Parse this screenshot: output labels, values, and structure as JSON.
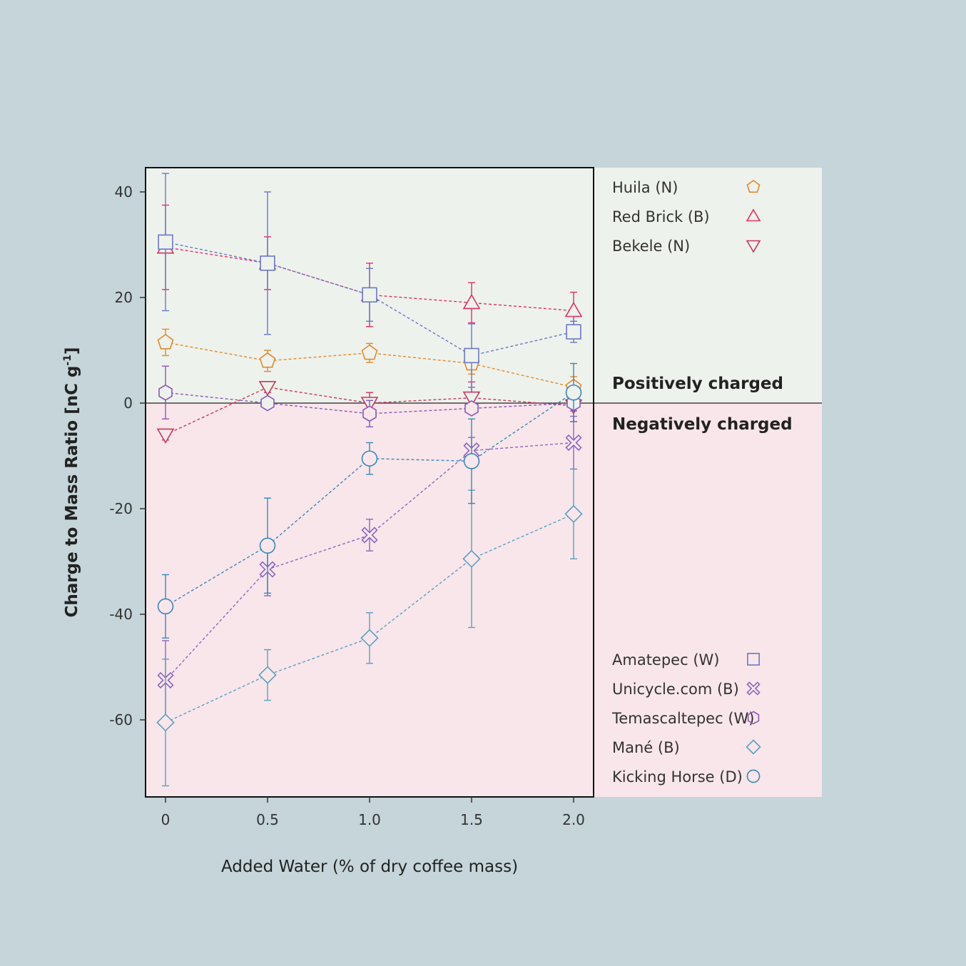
{
  "chart_data": {
    "type": "scatter",
    "xlabel": "Added Water (% of dry coffee mass)",
    "ylabel_main": "Charge to Mass Ratio [nC g",
    "ylabel_sup": "-1",
    "ylabel_end": "]",
    "x_ticks": [
      "0",
      "0.5",
      "1.0",
      "1.5",
      "2.0"
    ],
    "y_ticks": [
      "40",
      "20",
      "0",
      "-20",
      "-40",
      "-60"
    ],
    "xlim": [
      -0.1,
      2.05
    ],
    "ylim": [
      -74.5,
      44.5
    ],
    "region_labels": {
      "positive": "Positively charged",
      "negative": "Negatively charged"
    },
    "colors": {
      "positive_region": "#eef2ec",
      "negative_region": "#f8e6ea",
      "background": "#c5d5da"
    },
    "x": [
      0,
      0.5,
      1.0,
      1.5,
      2.0
    ],
    "series": [
      {
        "name": "Huila (N)",
        "marker": "pentagon",
        "color": "#e08a2e",
        "values": [
          11.5,
          8.0,
          9.5,
          7.5,
          3.0
        ],
        "errors": [
          2.5,
          2.0,
          1.8,
          2.0,
          2.0
        ]
      },
      {
        "name": "Red Brick (B)",
        "marker": "triangle-up",
        "color": "#e0306a",
        "values": [
          29.5,
          26.5,
          20.5,
          19.0,
          17.5
        ],
        "errors": [
          8.0,
          5.0,
          6.0,
          3.8,
          3.5
        ]
      },
      {
        "name": "Bekele (N)",
        "marker": "triangle-down",
        "color": "#c8385e",
        "values": [
          -6.0,
          3.0,
          0.0,
          1.0,
          -0.5
        ],
        "errors": [
          1.0,
          1.0,
          2.0,
          3.0,
          3.0
        ]
      },
      {
        "name": "Amatepec (W)",
        "marker": "square",
        "color": "#6a78c8",
        "values": [
          30.5,
          26.5,
          20.5,
          9.0,
          13.5
        ],
        "errors": [
          13.0,
          13.5,
          5.0,
          6.0,
          2.0
        ]
      },
      {
        "name": "Unicycle.com (B)",
        "marker": "cross",
        "color": "#8a68c0",
        "values": [
          -52.5,
          -31.5,
          -25.0,
          -9.0,
          -7.5
        ],
        "errors": [
          7.5,
          5.0,
          3.0,
          2.5,
          5.0
        ]
      },
      {
        "name": "Temascaltepec (W)",
        "marker": "hexagon",
        "color": "#8858b8",
        "values": [
          2.0,
          0.0,
          -2.0,
          -1.0,
          0.0
        ],
        "errors": [
          5.0,
          1.0,
          2.5,
          1.0,
          1.5
        ]
      },
      {
        "name": "Mané (B)",
        "marker": "diamond",
        "color": "#5aa0c0",
        "values": [
          -60.5,
          -51.5,
          -44.5,
          -29.5,
          -21.0
        ],
        "errors": [
          12.0,
          4.8,
          4.8,
          13.0,
          8.5
        ]
      },
      {
        "name": "Kicking Horse (D)",
        "marker": "circle",
        "color": "#3a88b8",
        "values": [
          -38.5,
          -27.0,
          -10.5,
          -11.0,
          2.0
        ],
        "errors": [
          6.0,
          9.0,
          3.0,
          8.0,
          5.5
        ]
      }
    ],
    "legend_top": [
      "Huila (N)",
      "Red Brick (B)",
      "Bekele (N)"
    ],
    "legend_bottom": [
      "Amatepec (W)",
      "Unicycle.com (B)",
      "Temascaltepec (W)",
      "Mané (B)",
      "Kicking Horse (D)"
    ]
  }
}
